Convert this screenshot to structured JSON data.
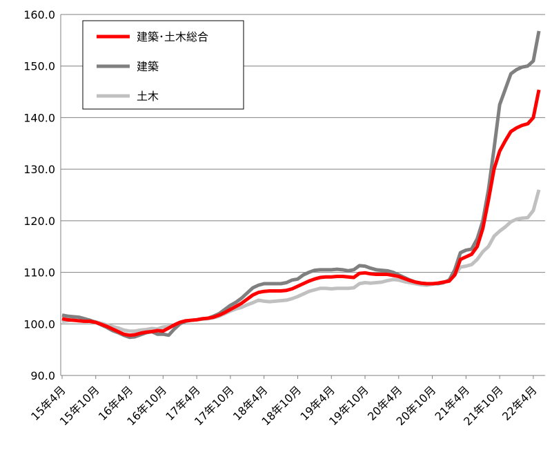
{
  "chart_data": {
    "type": "line",
    "categories": [
      "15年4月",
      null,
      null,
      null,
      null,
      null,
      "15年10月",
      null,
      null,
      null,
      null,
      null,
      "16年4月",
      null,
      null,
      null,
      null,
      null,
      "16年10月",
      null,
      null,
      null,
      null,
      null,
      "17年4月",
      null,
      null,
      null,
      null,
      null,
      "17年10月",
      null,
      null,
      null,
      null,
      null,
      "18年4月",
      null,
      null,
      null,
      null,
      null,
      "18年10月",
      null,
      null,
      null,
      null,
      null,
      "19年4月",
      null,
      null,
      null,
      null,
      null,
      "19年10月",
      null,
      null,
      null,
      null,
      null,
      "20年4月",
      null,
      null,
      null,
      null,
      null,
      "20年10月",
      null,
      null,
      null,
      null,
      null,
      "21年4月",
      null,
      null,
      null,
      null,
      null,
      "21年10月",
      null,
      null,
      null,
      null,
      null,
      "22年4月",
      null
    ],
    "series": [
      {
        "name": "建築･土木総合",
        "color": "#ff0000",
        "values": [
          101.0,
          100.8,
          100.7,
          100.6,
          100.5,
          100.5,
          100.3,
          99.9,
          99.5,
          99.0,
          98.5,
          98.0,
          97.8,
          97.9,
          98.2,
          98.4,
          98.5,
          98.7,
          98.6,
          99.2,
          99.8,
          100.3,
          100.6,
          100.7,
          100.8,
          101.0,
          101.1,
          101.3,
          101.7,
          102.2,
          102.8,
          103.4,
          104.0,
          104.8,
          105.6,
          106.1,
          106.3,
          106.4,
          106.4,
          106.4,
          106.5,
          106.8,
          107.3,
          107.8,
          108.3,
          108.7,
          109.0,
          109.1,
          109.1,
          109.2,
          109.2,
          109.1,
          109.0,
          109.8,
          109.9,
          109.7,
          109.6,
          109.6,
          109.6,
          109.4,
          109.2,
          108.8,
          108.4,
          108.1,
          107.9,
          107.8,
          107.8,
          107.9,
          108.1,
          108.3,
          109.5,
          112.5,
          113.0,
          113.5,
          115.0,
          118.5,
          124.0,
          130.0,
          133.5,
          135.5,
          137.3,
          138.0,
          138.5,
          138.8,
          140.0,
          145.4
        ]
      },
      {
        "name": "建築",
        "color": "#808080",
        "values": [
          101.7,
          101.5,
          101.4,
          101.3,
          101.0,
          100.7,
          100.3,
          99.8,
          99.3,
          98.7,
          98.3,
          97.8,
          97.4,
          97.5,
          97.9,
          98.3,
          98.5,
          98.0,
          98.0,
          97.8,
          99.0,
          100.0,
          100.5,
          100.7,
          100.8,
          101.0,
          101.1,
          101.5,
          102.0,
          102.8,
          103.6,
          104.2,
          105.0,
          106.0,
          107.0,
          107.5,
          107.8,
          107.8,
          107.8,
          107.8,
          108.0,
          108.5,
          108.7,
          109.5,
          110.0,
          110.4,
          110.5,
          110.5,
          110.5,
          110.6,
          110.5,
          110.3,
          110.5,
          111.3,
          111.2,
          110.8,
          110.5,
          110.4,
          110.3,
          110.0,
          109.5,
          109.0,
          108.5,
          108.1,
          107.9,
          107.8,
          107.8,
          107.8,
          108.0,
          108.5,
          110.5,
          113.8,
          114.3,
          114.5,
          116.5,
          120.0,
          126.0,
          134.0,
          142.5,
          145.5,
          148.5,
          149.3,
          149.8,
          150.0,
          151.0,
          156.8
        ]
      },
      {
        "name": "土木",
        "color": "#c0c0c0",
        "values": [
          100.5,
          100.6,
          100.8,
          100.6,
          100.5,
          100.5,
          100.4,
          100.1,
          99.8,
          99.5,
          99.2,
          98.8,
          98.6,
          98.6,
          98.8,
          98.9,
          99.1,
          99.0,
          99.4,
          99.5,
          99.6,
          100.2,
          100.6,
          100.7,
          100.8,
          100.9,
          101.0,
          101.2,
          101.5,
          102.0,
          102.5,
          102.9,
          103.2,
          103.7,
          104.1,
          104.6,
          104.4,
          104.3,
          104.4,
          104.5,
          104.6,
          104.9,
          105.3,
          105.8,
          106.3,
          106.6,
          106.9,
          106.9,
          106.8,
          106.9,
          106.9,
          106.9,
          107.0,
          107.8,
          108.0,
          107.9,
          108.0,
          108.1,
          108.4,
          108.6,
          108.5,
          108.2,
          108.0,
          107.8,
          107.6,
          107.5,
          107.7,
          107.9,
          108.1,
          108.4,
          109.5,
          111.0,
          111.2,
          111.5,
          112.5,
          114.0,
          115.0,
          117.0,
          118.0,
          118.8,
          119.8,
          120.3,
          120.5,
          120.6,
          122.0,
          126.0
        ]
      }
    ],
    "ylim": [
      90,
      160
    ],
    "yticks": [
      {
        "value": 90,
        "label": "90.0"
      },
      {
        "value": 100,
        "label": "100.0"
      },
      {
        "value": 110,
        "label": "110.0"
      },
      {
        "value": 120,
        "label": "120.0"
      },
      {
        "value": 130,
        "label": "130.0"
      },
      {
        "value": 140,
        "label": "140.0"
      },
      {
        "value": 150,
        "label": "150.0"
      },
      {
        "value": 160,
        "label": "160.0"
      }
    ],
    "grid": true,
    "legend": "upper left"
  }
}
